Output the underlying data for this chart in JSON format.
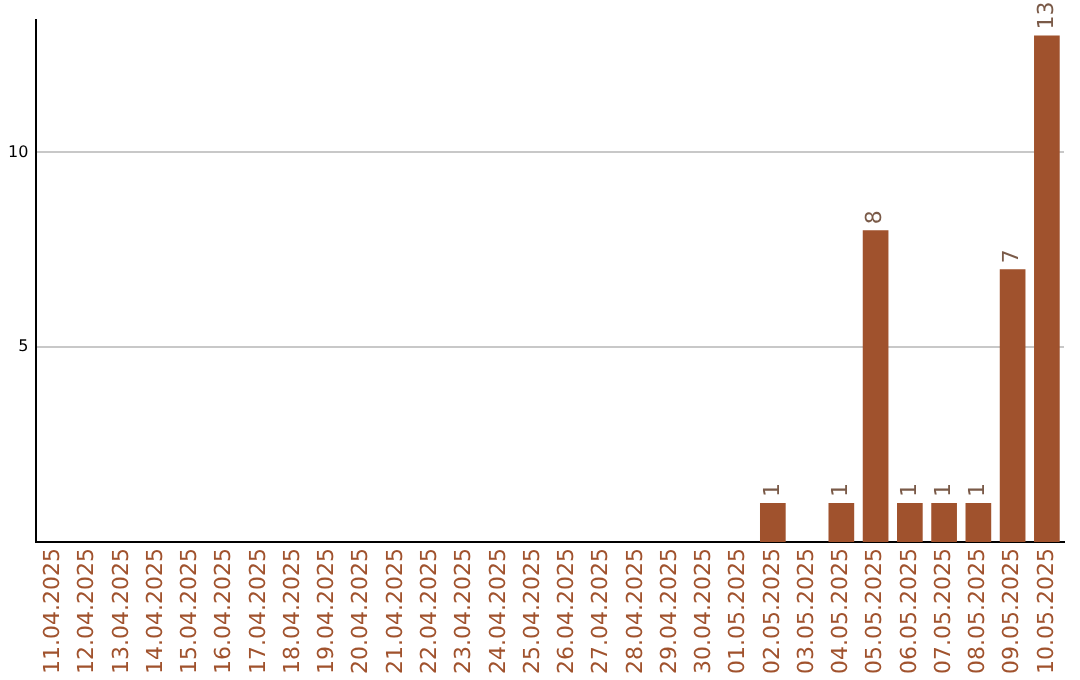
{
  "chart_data": {
    "type": "bar",
    "categories": [
      "11.04.2025",
      "12.04.2025",
      "13.04.2025",
      "14.04.2025",
      "15.04.2025",
      "16.04.2025",
      "17.04.2025",
      "18.04.2025",
      "19.04.2025",
      "20.04.2025",
      "21.04.2025",
      "22.04.2025",
      "23.04.2025",
      "24.04.2025",
      "25.04.2025",
      "26.04.2025",
      "27.04.2025",
      "28.04.2025",
      "29.04.2025",
      "30.04.2025",
      "01.05.2025",
      "02.05.2025",
      "03.05.2025",
      "04.05.2025",
      "05.05.2025",
      "06.05.2025",
      "07.05.2025",
      "08.05.2025",
      "09.05.2025",
      "10.05.2025"
    ],
    "values": [
      null,
      null,
      null,
      null,
      null,
      null,
      null,
      null,
      null,
      null,
      null,
      null,
      null,
      null,
      null,
      null,
      null,
      null,
      null,
      null,
      null,
      1,
      null,
      1,
      8,
      1,
      1,
      1,
      7,
      13
    ],
    "color": "#a0522d",
    "ylim": [
      0,
      13.4
    ],
    "yticks": [
      5,
      10
    ],
    "grid": "y",
    "data_labels": true
  }
}
